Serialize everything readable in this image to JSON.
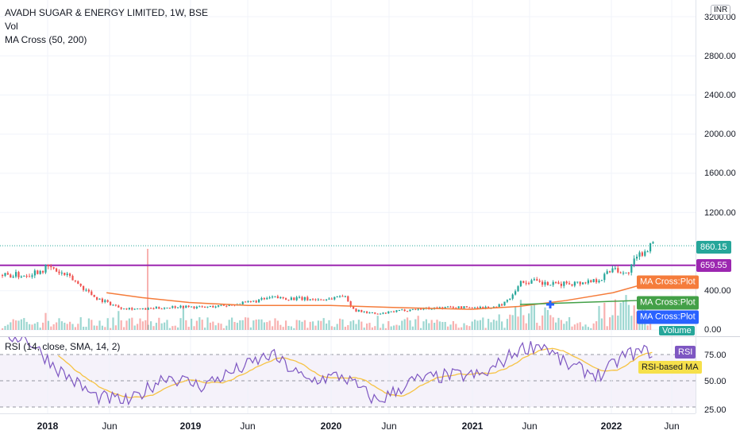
{
  "legend": {
    "title": "AVADH SUGAR & ENERGY LIMITED, 1W, BSE",
    "vol": "Vol",
    "ma": "MA Cross (50, 200)",
    "rsi": "RSI (14, close, SMA, 14, 2)"
  },
  "currency_badge": "INR",
  "price_axis": [
    "2800.00",
    "2400.00",
    "2000.00",
    "1600.00",
    "1200.00",
    "400.00",
    "0.00"
  ],
  "price_axis_top_partial": "3200.00",
  "tags": {
    "last_price": "860.15",
    "level": "659.55",
    "ma_fast": "MA Cross:Plot",
    "ma_slow": "MA Cross:Plot",
    "ma_cross": "MA Cross:Plot",
    "volume": "Volume"
  },
  "rsi_axis": [
    "75.00",
    "50.00",
    "25.00"
  ],
  "rsi_tags": {
    "rsi": "RSI",
    "rsi_ma": "RSI-based MA"
  },
  "time_axis": [
    {
      "label": "2018",
      "year": true
    },
    {
      "label": "Jun",
      "year": false
    },
    {
      "label": "2019",
      "year": true
    },
    {
      "label": "Jun",
      "year": false
    },
    {
      "label": "2020",
      "year": true
    },
    {
      "label": "Jun",
      "year": false
    },
    {
      "label": "2021",
      "year": true
    },
    {
      "label": "Jun",
      "year": false
    },
    {
      "label": "2022",
      "year": true
    },
    {
      "label": "Jun",
      "year": false
    }
  ],
  "colors": {
    "up": "#26a69a",
    "down": "#ef5350",
    "ma_fast": "#f57c3b",
    "ma_slow": "#43a047",
    "level": "#9c27b0",
    "rsi": "#7e57c2",
    "rsi_ma": "#f6c344",
    "cross": "#2962ff"
  },
  "chart_data": {
    "type": "line",
    "series": [
      {
        "name": "AVADH SUGAR & ENERGY LIMITED, 1W, BSE",
        "x": [
          "2017-11",
          "2018-01",
          "2018-03",
          "2018-05",
          "2018-07",
          "2018-09",
          "2018-10",
          "2018-12",
          "2019-02",
          "2019-04",
          "2019-06",
          "2019-08",
          "2019-10",
          "2019-12",
          "2020-01",
          "2020-02",
          "2020-03",
          "2020-05",
          "2020-07",
          "2020-09",
          "2020-11",
          "2021-01",
          "2021-03",
          "2021-04",
          "2021-05",
          "2021-06",
          "2021-07",
          "2021-08",
          "2021-09",
          "2021-10",
          "2021-11",
          "2021-12",
          "2022-01",
          "2022-02",
          "2022-03",
          "2022-04"
        ],
        "y": [
          560,
          640,
          520,
          330,
          230,
          210,
          220,
          240,
          230,
          250,
          280,
          330,
          320,
          310,
          320,
          360,
          200,
          160,
          200,
          220,
          230,
          230,
          230,
          300,
          480,
          500,
          470,
          460,
          480,
          480,
          500,
          530,
          650,
          560,
          740,
          860
        ]
      },
      {
        "name": "MA Cross",
        "x": [
          "2018-06",
          "2018-09",
          "2019-01",
          "2019-06",
          "2020-01",
          "2020-06",
          "2021-01",
          "2021-05",
          "2021-09",
          "2022-01",
          "2022-04"
        ],
        "y": [
          380,
          330,
          280,
          250,
          250,
          230,
          210,
          240,
          300,
          380,
          480
        ]
      },
      {
        "name": "RSI (14, close, SMA, 14, 2)",
        "x": [
          "2017-11",
          "2018-02",
          "2018-05",
          "2018-08",
          "2018-11",
          "2019-02",
          "2019-05",
          "2019-08",
          "2019-11",
          "2020-02",
          "2020-05",
          "2020-08",
          "2020-11",
          "2021-02",
          "2021-05",
          "2021-07",
          "2021-09",
          "2021-12",
          "2022-02",
          "2022-04"
        ],
        "y": [
          92,
          60,
          35,
          30,
          55,
          45,
          60,
          75,
          50,
          55,
          30,
          50,
          55,
          55,
          80,
          85,
          65,
          55,
          75,
          78
        ]
      }
    ],
    "yticks_price": [
      0,
      400,
      1200,
      1600,
      2000,
      2400,
      2800,
      3200
    ],
    "yticks_rsi": [
      25,
      50,
      75
    ],
    "grid": true
  }
}
